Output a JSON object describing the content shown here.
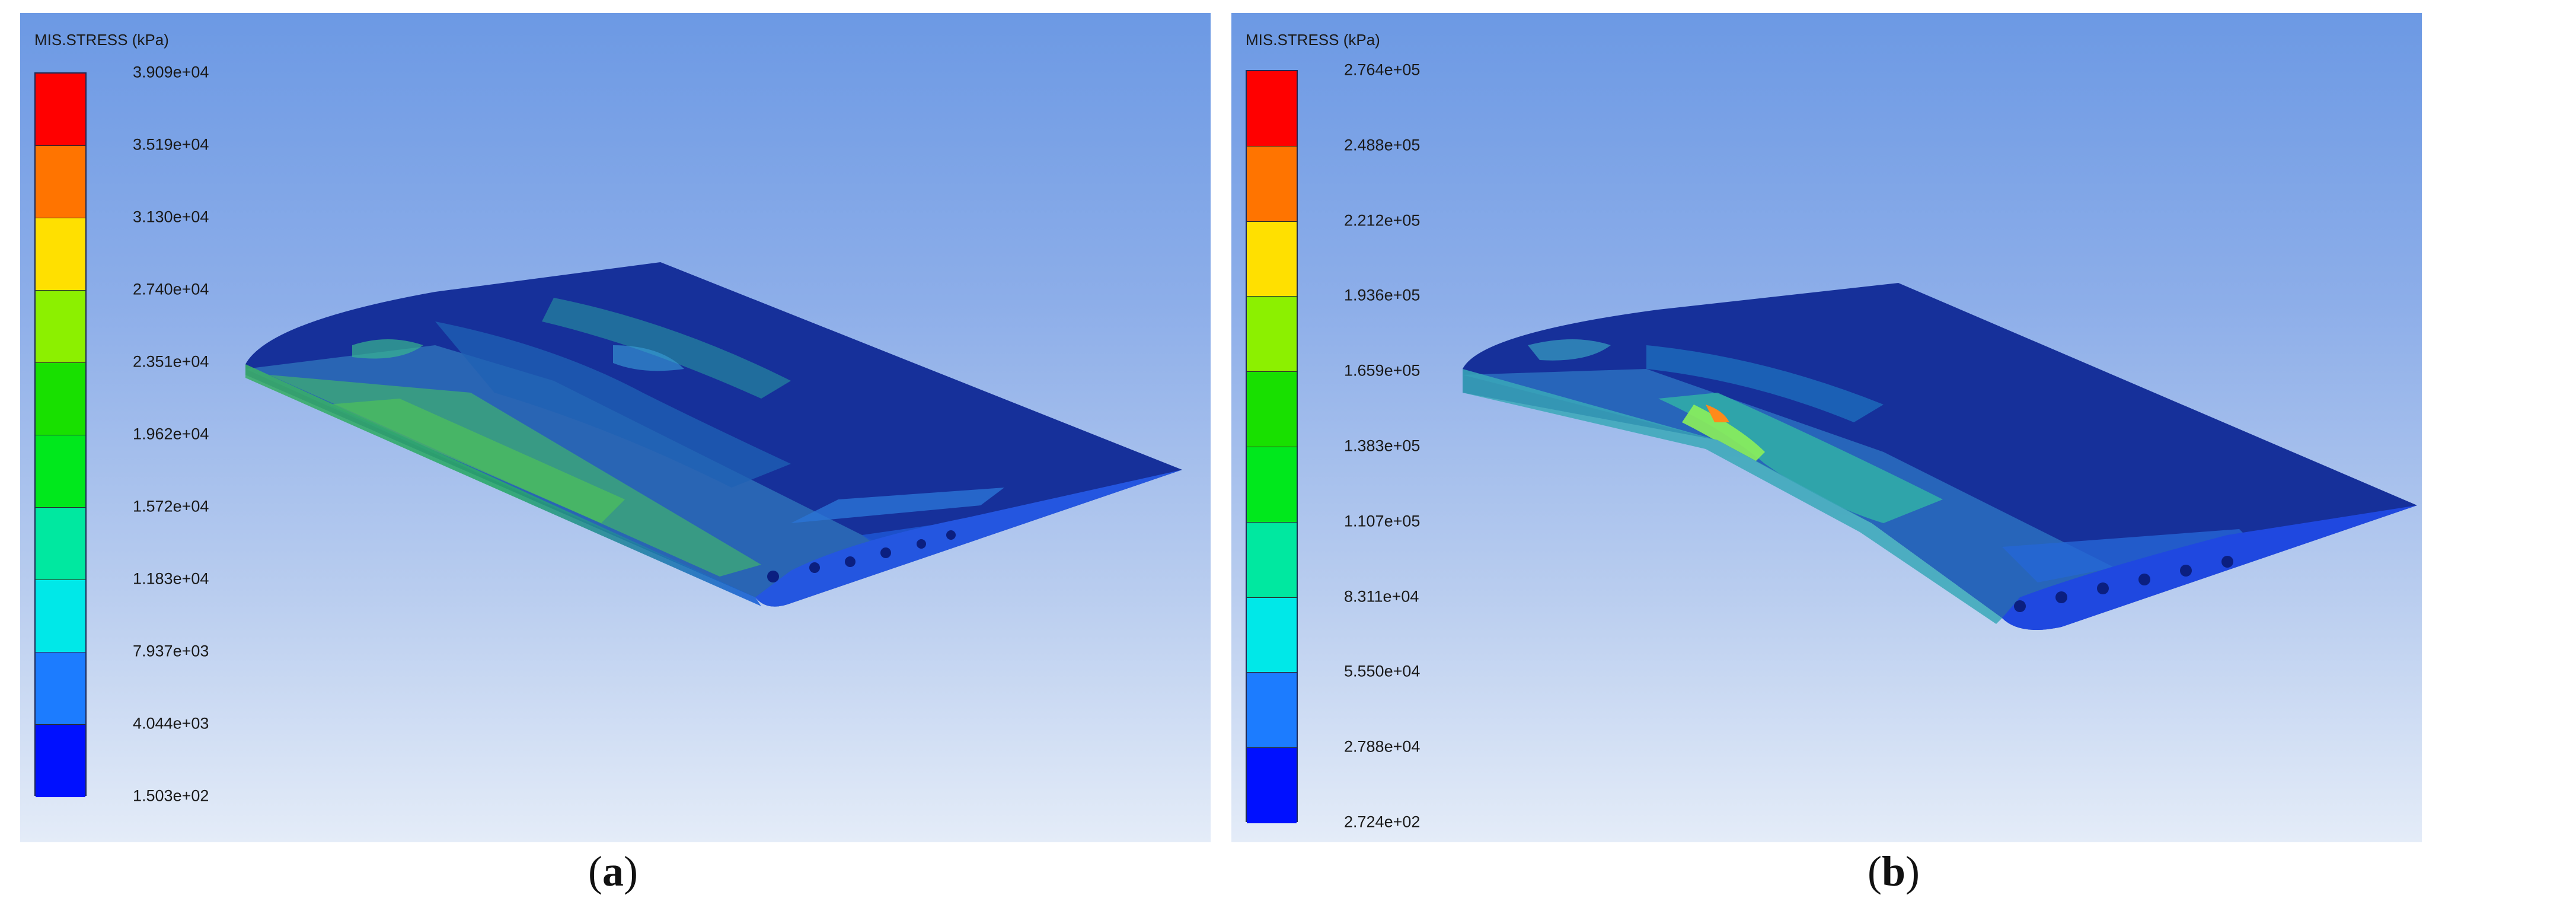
{
  "panels": [
    {
      "caption_letter": "a",
      "legend": {
        "title": "MIS.STRESS (kPa)",
        "ticks": [
          "3.909e+04",
          "3.519e+04",
          "3.130e+04",
          "2.740e+04",
          "2.351e+04",
          "1.962e+04",
          "1.572e+04",
          "1.183e+04",
          "7.937e+03",
          "4.044e+03",
          "1.503e+02"
        ],
        "colors": [
          "#ff0000",
          "#ff7400",
          "#ffe000",
          "#8cf000",
          "#18e000",
          "#00e81c",
          "#00e8a0",
          "#00e8e8",
          "#1c7cff",
          "#0010ff"
        ]
      }
    },
    {
      "caption_letter": "b",
      "legend": {
        "title": "MIS.STRESS (kPa)",
        "ticks": [
          "2.764e+05",
          "2.488e+05",
          "2.212e+05",
          "1.936e+05",
          "1.659e+05",
          "1.383e+05",
          "1.107e+05",
          "8.311e+04",
          "5.550e+04",
          "2.788e+04",
          "2.724e+02"
        ],
        "colors": [
          "#ff0000",
          "#ff7400",
          "#ffe000",
          "#8cf000",
          "#18e000",
          "#00e81c",
          "#00e8a0",
          "#00e8e8",
          "#1c7cff",
          "#0010ff"
        ]
      }
    }
  ]
}
